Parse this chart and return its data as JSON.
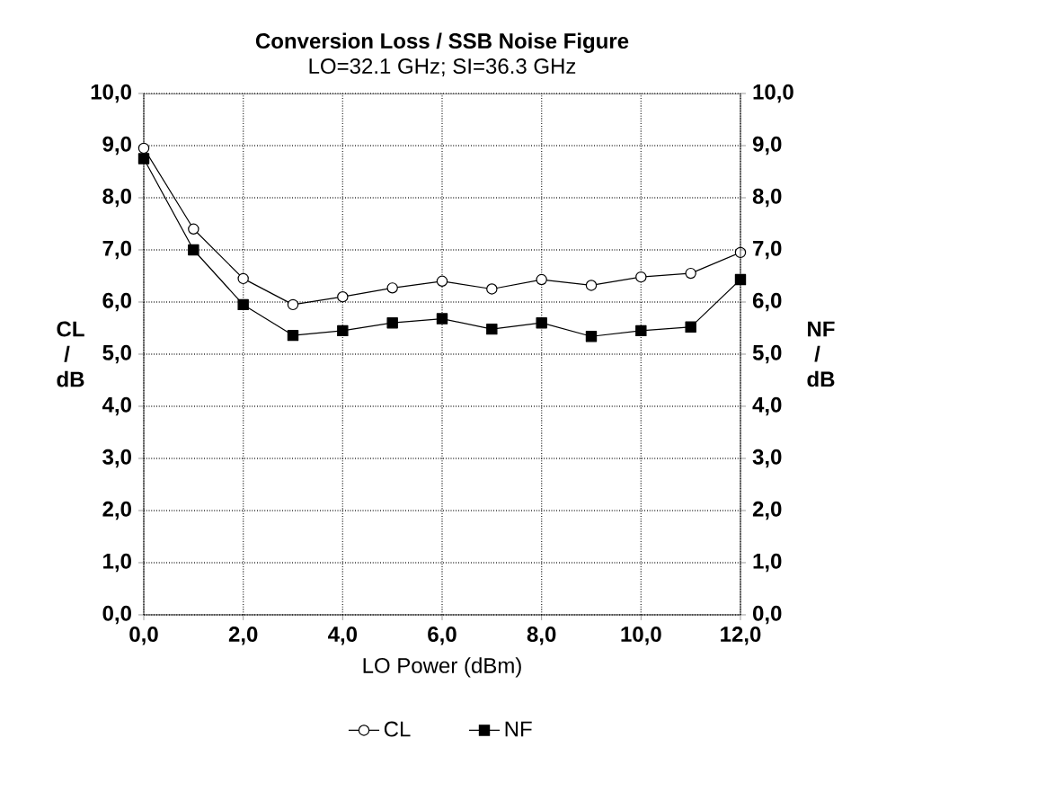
{
  "chart_data": {
    "type": "line",
    "title": "Conversion Loss / SSB Noise Figure",
    "subtitle": "LO=32.1 GHz; SI=36.3 GHz",
    "xlabel": "LO Power (dBm)",
    "ylabel": "CL / dB",
    "y2label": "NF / dB",
    "x": [
      0,
      1,
      2,
      3,
      4,
      5,
      6,
      7,
      8,
      9,
      10,
      11,
      12
    ],
    "xlim": [
      0,
      12
    ],
    "xticks": [
      {
        "value": 0,
        "label": "0,0"
      },
      {
        "value": 2,
        "label": "2,0"
      },
      {
        "value": 4,
        "label": "4,0"
      },
      {
        "value": 6,
        "label": "6,0"
      },
      {
        "value": 8,
        "label": "8,0"
      },
      {
        "value": 10,
        "label": "10,0"
      },
      {
        "value": 12,
        "label": "12,0"
      }
    ],
    "ylim": [
      0,
      10
    ],
    "yticks": [
      {
        "value": 0,
        "label": "0,0"
      },
      {
        "value": 1,
        "label": "1,0"
      },
      {
        "value": 2,
        "label": "2,0"
      },
      {
        "value": 3,
        "label": "3,0"
      },
      {
        "value": 4,
        "label": "4,0"
      },
      {
        "value": 5,
        "label": "5,0"
      },
      {
        "value": 6,
        "label": "6,0"
      },
      {
        "value": 7,
        "label": "7,0"
      },
      {
        "value": 8,
        "label": "8,0"
      },
      {
        "value": 9,
        "label": "9,0"
      },
      {
        "value": 10,
        "label": "10,0"
      }
    ],
    "y2lim": [
      0,
      10
    ],
    "y2ticks": [
      {
        "value": 0,
        "label": "0,0"
      },
      {
        "value": 1,
        "label": "1,0"
      },
      {
        "value": 2,
        "label": "2,0"
      },
      {
        "value": 3,
        "label": "3,0"
      },
      {
        "value": 4,
        "label": "4,0"
      },
      {
        "value": 5,
        "label": "5,0"
      },
      {
        "value": 6,
        "label": "6,0"
      },
      {
        "value": 7,
        "label": "7,0"
      },
      {
        "value": 8,
        "label": "8,0"
      },
      {
        "value": 9,
        "label": "9,0"
      },
      {
        "value": 10,
        "label": "10,0"
      }
    ],
    "grid": true,
    "legend": "bottom",
    "line_style": "solid",
    "series": [
      {
        "name": "CL",
        "color": "#000000",
        "marker": "circle",
        "values": [
          8.95,
          7.4,
          6.45,
          5.95,
          6.1,
          6.27,
          6.4,
          6.25,
          6.43,
          6.32,
          6.48,
          6.55,
          6.95
        ]
      },
      {
        "name": "NF",
        "color": "#000000",
        "marker": "square",
        "axis": "y2",
        "values": [
          8.75,
          7.0,
          5.95,
          5.36,
          5.45,
          5.6,
          5.68,
          5.48,
          5.6,
          5.34,
          5.45,
          5.52,
          6.43
        ]
      }
    ]
  }
}
